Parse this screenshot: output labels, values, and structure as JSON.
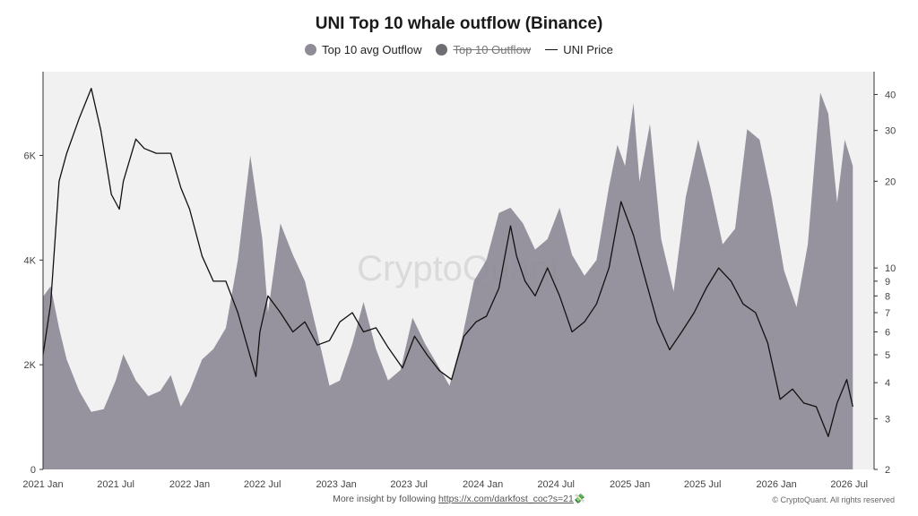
{
  "chart_data": {
    "type": "area",
    "title": "UNI Top 10 whale outflow (Binance)",
    "legend": [
      {
        "label": "Top 10 avg Outflow",
        "color": "#8f8b97",
        "visible": true
      },
      {
        "label": "Top 10 Outflow",
        "color": "#6f6c74",
        "visible": false
      },
      {
        "label": "UNI Price",
        "color": "#111111",
        "visible": true
      }
    ],
    "x_tick_labels": [
      "2021 Jan",
      "2021 Jul",
      "2022 Jan",
      "2022 Jul",
      "2023 Jan",
      "2023 Jul",
      "2024 Jan",
      "2024 Jul",
      "2025 Jan",
      "2025 Jul",
      "2026 Jan",
      "2026 Jul"
    ],
    "x_tick_dates": [
      "2021-01-01",
      "2021-07-01",
      "2022-01-01",
      "2022-07-01",
      "2023-01-01",
      "2023-07-01",
      "2024-01-01",
      "2024-07-01",
      "2025-01-01",
      "2025-07-01",
      "2026-01-01",
      "2026-07-01"
    ],
    "x_range": [
      "2021-01-01",
      "2026-09-01"
    ],
    "y_left": {
      "label": "",
      "ticks": [
        0,
        2000,
        4000,
        6000
      ],
      "tick_labels": [
        "0",
        "2K",
        "4K",
        "6K"
      ],
      "range": [
        0,
        7600
      ]
    },
    "y_right": {
      "label": "",
      "scale": "log",
      "ticks": [
        2,
        3,
        4,
        5,
        6,
        7,
        8,
        9,
        10,
        20,
        30,
        40
      ],
      "tick_labels": [
        "2",
        "3",
        "4",
        "5",
        "6",
        "7",
        "8",
        "9",
        "10",
        "20",
        "30",
        "40"
      ],
      "range": [
        2,
        48
      ]
    },
    "outflow_series": {
      "name": "Top 10 avg Outflow",
      "points": [
        [
          "2021-01-01",
          3300
        ],
        [
          "2021-01-20",
          3500
        ],
        [
          "2021-02-10",
          2700
        ],
        [
          "2021-03-01",
          2100
        ],
        [
          "2021-04-01",
          1500
        ],
        [
          "2021-05-01",
          1100
        ],
        [
          "2021-06-01",
          1150
        ],
        [
          "2021-07-01",
          1700
        ],
        [
          "2021-07-20",
          2200
        ],
        [
          "2021-08-20",
          1700
        ],
        [
          "2021-09-20",
          1400
        ],
        [
          "2021-10-20",
          1500
        ],
        [
          "2021-11-15",
          1800
        ],
        [
          "2021-12-10",
          1200
        ],
        [
          "2022-01-01",
          1500
        ],
        [
          "2022-02-01",
          2100
        ],
        [
          "2022-03-01",
          2300
        ],
        [
          "2022-04-01",
          2700
        ],
        [
          "2022-05-01",
          4000
        ],
        [
          "2022-06-01",
          6000
        ],
        [
          "2022-07-01",
          4400
        ],
        [
          "2022-07-15",
          3000
        ],
        [
          "2022-08-15",
          4700
        ],
        [
          "2022-09-15",
          4100
        ],
        [
          "2022-10-15",
          3600
        ],
        [
          "2022-11-15",
          2600
        ],
        [
          "2022-12-15",
          1600
        ],
        [
          "2023-01-10",
          1700
        ],
        [
          "2023-02-10",
          2400
        ],
        [
          "2023-03-10",
          3200
        ],
        [
          "2023-04-10",
          2300
        ],
        [
          "2023-05-10",
          1700
        ],
        [
          "2023-06-10",
          1900
        ],
        [
          "2023-07-10",
          2900
        ],
        [
          "2023-08-10",
          2400
        ],
        [
          "2023-09-10",
          2000
        ],
        [
          "2023-10-10",
          1600
        ],
        [
          "2023-11-10",
          2500
        ],
        [
          "2023-12-10",
          3600
        ],
        [
          "2024-01-10",
          4000
        ],
        [
          "2024-02-10",
          4900
        ],
        [
          "2024-03-10",
          5000
        ],
        [
          "2024-04-10",
          4700
        ],
        [
          "2024-05-10",
          4200
        ],
        [
          "2024-06-10",
          4400
        ],
        [
          "2024-07-10",
          5000
        ],
        [
          "2024-08-10",
          4100
        ],
        [
          "2024-09-10",
          3700
        ],
        [
          "2024-10-10",
          4000
        ],
        [
          "2024-11-10",
          5400
        ],
        [
          "2024-12-01",
          6200
        ],
        [
          "2024-12-20",
          5800
        ],
        [
          "2025-01-10",
          7000
        ],
        [
          "2025-01-25",
          5500
        ],
        [
          "2025-02-20",
          6600
        ],
        [
          "2025-03-20",
          4400
        ],
        [
          "2025-04-20",
          3400
        ],
        [
          "2025-05-20",
          5200
        ],
        [
          "2025-06-20",
          6300
        ],
        [
          "2025-07-20",
          5400
        ],
        [
          "2025-08-20",
          4300
        ],
        [
          "2025-09-20",
          4600
        ],
        [
          "2025-10-20",
          6500
        ],
        [
          "2025-11-20",
          6300
        ],
        [
          "2025-12-20",
          5200
        ],
        [
          "2026-01-20",
          3800
        ],
        [
          "2026-02-20",
          3100
        ],
        [
          "2026-03-20",
          4300
        ],
        [
          "2026-04-20",
          7200
        ],
        [
          "2026-05-10",
          6800
        ],
        [
          "2026-06-01",
          5100
        ],
        [
          "2026-06-20",
          6300
        ],
        [
          "2026-07-10",
          5800
        ]
      ]
    },
    "price_series": {
      "name": "UNI Price",
      "points": [
        [
          "2021-01-01",
          5.0
        ],
        [
          "2021-01-20",
          7.5
        ],
        [
          "2021-02-10",
          20
        ],
        [
          "2021-03-01",
          25
        ],
        [
          "2021-04-01",
          33
        ],
        [
          "2021-05-01",
          42
        ],
        [
          "2021-05-25",
          30
        ],
        [
          "2021-06-20",
          18
        ],
        [
          "2021-07-10",
          16
        ],
        [
          "2021-07-20",
          20
        ],
        [
          "2021-08-20",
          28
        ],
        [
          "2021-09-10",
          26
        ],
        [
          "2021-10-10",
          25
        ],
        [
          "2021-11-15",
          25
        ],
        [
          "2021-12-10",
          19
        ],
        [
          "2022-01-01",
          16
        ],
        [
          "2022-02-01",
          11
        ],
        [
          "2022-03-01",
          9
        ],
        [
          "2022-04-01",
          9
        ],
        [
          "2022-05-01",
          7
        ],
        [
          "2022-06-15",
          4.2
        ],
        [
          "2022-06-25",
          6
        ],
        [
          "2022-07-15",
          8
        ],
        [
          "2022-08-15",
          7
        ],
        [
          "2022-09-15",
          6
        ],
        [
          "2022-10-15",
          6.5
        ],
        [
          "2022-11-15",
          5.4
        ],
        [
          "2022-12-15",
          5.6
        ],
        [
          "2023-01-10",
          6.5
        ],
        [
          "2023-02-10",
          7
        ],
        [
          "2023-03-10",
          6
        ],
        [
          "2023-04-10",
          6.2
        ],
        [
          "2023-05-10",
          5.3
        ],
        [
          "2023-06-15",
          4.5
        ],
        [
          "2023-07-15",
          5.8
        ],
        [
          "2023-08-15",
          5.0
        ],
        [
          "2023-09-15",
          4.4
        ],
        [
          "2023-10-15",
          4.1
        ],
        [
          "2023-11-15",
          5.8
        ],
        [
          "2023-12-15",
          6.5
        ],
        [
          "2024-01-10",
          6.8
        ],
        [
          "2024-02-10",
          8.5
        ],
        [
          "2024-03-10",
          14
        ],
        [
          "2024-03-25",
          11
        ],
        [
          "2024-04-15",
          9
        ],
        [
          "2024-05-10",
          8
        ],
        [
          "2024-06-10",
          10
        ],
        [
          "2024-07-10",
          8
        ],
        [
          "2024-08-10",
          6
        ],
        [
          "2024-09-10",
          6.5
        ],
        [
          "2024-10-10",
          7.5
        ],
        [
          "2024-11-10",
          10
        ],
        [
          "2024-12-10",
          17
        ],
        [
          "2025-01-10",
          13
        ],
        [
          "2025-02-10",
          9
        ],
        [
          "2025-03-10",
          6.5
        ],
        [
          "2025-04-10",
          5.2
        ],
        [
          "2025-05-10",
          6
        ],
        [
          "2025-06-10",
          7
        ],
        [
          "2025-07-10",
          8.5
        ],
        [
          "2025-08-10",
          10
        ],
        [
          "2025-09-10",
          9
        ],
        [
          "2025-10-10",
          7.5
        ],
        [
          "2025-11-10",
          7
        ],
        [
          "2025-12-10",
          5.5
        ],
        [
          "2026-01-10",
          3.5
        ],
        [
          "2026-02-10",
          3.8
        ],
        [
          "2026-03-10",
          3.4
        ],
        [
          "2026-04-10",
          3.3
        ],
        [
          "2026-05-10",
          2.6
        ],
        [
          "2026-06-01",
          3.4
        ],
        [
          "2026-06-25",
          4.1
        ],
        [
          "2026-07-10",
          3.3
        ]
      ]
    },
    "watermark": "CryptoQuant",
    "colors": {
      "area": "#8f8b97",
      "price": "#111111",
      "plot_bg": "#f1f1f1"
    }
  },
  "footer": {
    "note_prefix": "More insight by following ",
    "note_link": "https://x.com/darkfost_coc?s=21",
    "note_emoji": "💸",
    "copyright": "© CryptoQuant. All rights reserved"
  }
}
